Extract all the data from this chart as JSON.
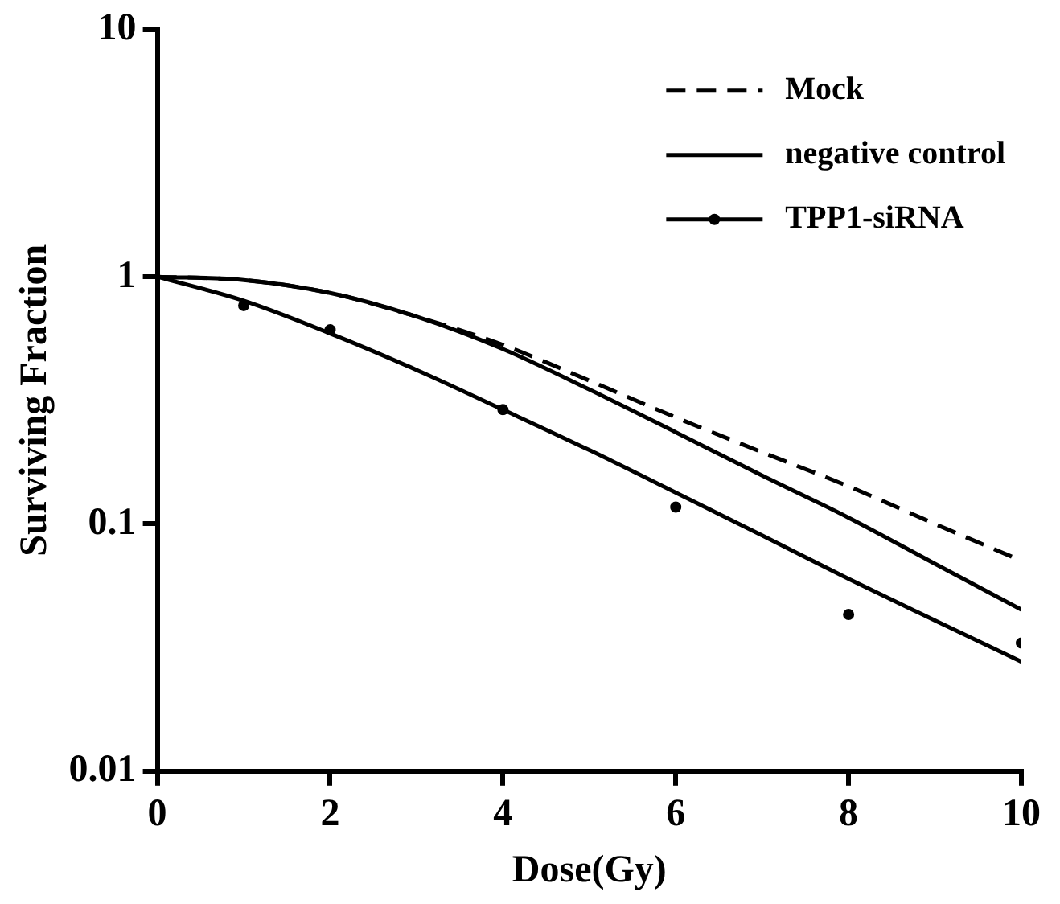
{
  "chart_data": {
    "type": "line",
    "xlabel": "Dose(Gy)",
    "ylabel": "Surviving Fraction",
    "x": [
      0,
      1,
      2,
      3,
      4,
      5,
      6,
      7,
      8,
      9,
      10
    ],
    "series": [
      {
        "name": "Mock",
        "color": "#000000",
        "line_style": "dashed",
        "values": [
          1,
          0.97,
          0.86,
          0.69,
          0.53,
          0.38,
          0.27,
          0.195,
          0.142,
          0.1,
          0.071
        ]
      },
      {
        "name": "negative control",
        "color": "#000000",
        "line_style": "solid",
        "values": [
          1,
          0.97,
          0.86,
          0.69,
          0.51,
          0.35,
          0.235,
          0.157,
          0.106,
          0.069,
          0.045
        ]
      },
      {
        "name": "TPP1-siRNA",
        "type": "scatter",
        "color": "#000000",
        "marker": "circle",
        "x": [
          1,
          2,
          4,
          6,
          8,
          10
        ],
        "values": [
          0.765,
          0.61,
          0.29,
          0.117,
          0.043,
          0.033
        ]
      },
      {
        "color": "#000000",
        "line_style": "solid",
        "values": [
          1,
          0.8,
          0.59,
          0.42,
          0.29,
          0.199,
          0.134,
          0.0898,
          0.06,
          0.0407,
          0.0277
        ]
      }
    ],
    "log": "y",
    "xlim": [
      0,
      10
    ],
    "xticks": [
      0,
      2,
      4,
      6,
      8,
      10
    ],
    "ylim": [
      0.01,
      10
    ],
    "yticks": [
      0.01,
      0.1,
      1,
      10
    ],
    "grid": false,
    "legend": "top right"
  }
}
